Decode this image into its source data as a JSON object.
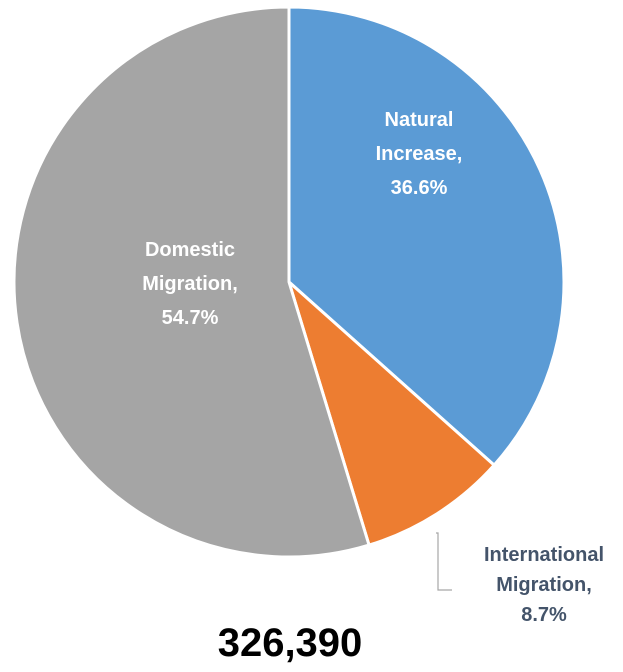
{
  "chart_data": {
    "type": "pie",
    "total": "326,390",
    "slices": [
      {
        "name": "Natural Increase",
        "value": 36.6,
        "label_lines": [
          "Natural",
          "Increase,",
          "36.6%"
        ],
        "color": "#5b9bd5"
      },
      {
        "name": "International Migration",
        "value": 8.7,
        "label_lines": [
          "International",
          "Migration,",
          "8.7%"
        ],
        "color": "#ed7d31"
      },
      {
        "name": "Domestic Migration",
        "value": 54.7,
        "label_lines": [
          "Domestic",
          "Migration,",
          "54.7%"
        ],
        "color": "#a5a5a5"
      }
    ]
  }
}
